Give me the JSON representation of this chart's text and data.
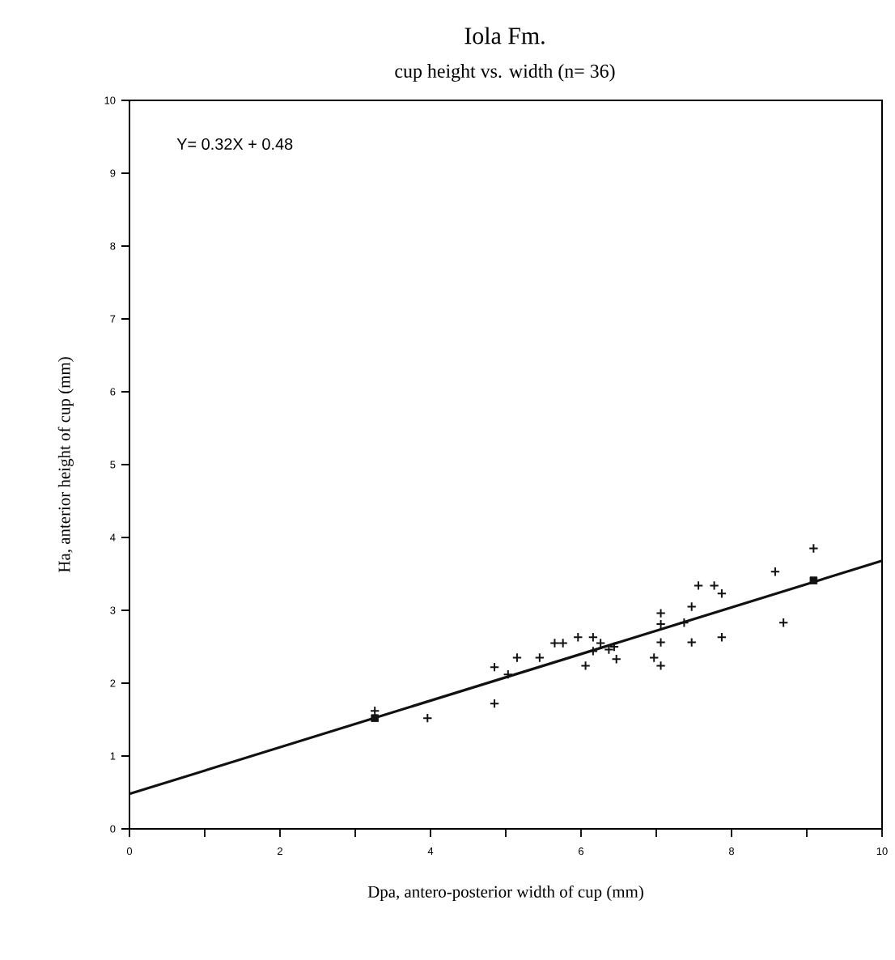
{
  "chart_data": {
    "type": "scatter",
    "title": "Iola Fm.",
    "subtitle": "cup height vs. width (n= 36)",
    "xlabel": "Dpa,  antero-posterior width of cup (mm)",
    "ylabel": "Ha, anterior height of cup (mm)",
    "annotations": [
      "Y= 0.32X + 0.48"
    ],
    "xlim": [
      0,
      10
    ],
    "ylim": [
      0,
      10
    ],
    "xticks": [
      0,
      {
        "value": 1,
        "label": null
      },
      2,
      {
        "value": 3,
        "label": null
      },
      4,
      {
        "value": 5,
        "label": null
      },
      6,
      {
        "value": 7,
        "label": null
      },
      8,
      {
        "value": 9,
        "label": null
      },
      10
    ],
    "yticks": [
      0,
      1,
      2,
      3,
      4,
      5,
      6,
      7,
      8,
      9,
      10
    ],
    "grid": false,
    "series": [
      {
        "marker": "cross",
        "color": "#111111",
        "x": [
          3.26,
          3.96,
          4.85,
          4.85,
          5.03,
          5.15,
          5.45,
          5.65,
          5.76,
          5.96,
          6.06,
          6.16,
          6.16,
          6.26,
          6.37,
          6.44,
          6.47,
          6.97,
          7.06,
          7.06,
          7.06,
          7.06,
          7.37,
          7.47,
          7.47,
          7.56,
          7.77,
          7.87,
          7.87,
          8.58,
          8.69,
          9.09
        ],
        "values": [
          1.62,
          1.52,
          2.22,
          1.72,
          2.12,
          2.35,
          2.35,
          2.55,
          2.55,
          2.63,
          2.24,
          2.63,
          2.44,
          2.55,
          2.46,
          2.5,
          2.33,
          2.35,
          2.24,
          2.56,
          2.96,
          2.81,
          2.83,
          2.56,
          3.05,
          3.34,
          3.34,
          3.23,
          2.63,
          3.53,
          2.83,
          3.85
        ]
      },
      {
        "marker": "square",
        "color": "#111111",
        "x": [
          3.26,
          9.09
        ],
        "values": [
          1.52,
          3.41
        ]
      },
      {
        "type": "line",
        "marker": "none",
        "line_style": "solid",
        "color": "#111111",
        "x": [
          0,
          10
        ],
        "values": [
          0.48,
          3.68
        ]
      }
    ]
  }
}
